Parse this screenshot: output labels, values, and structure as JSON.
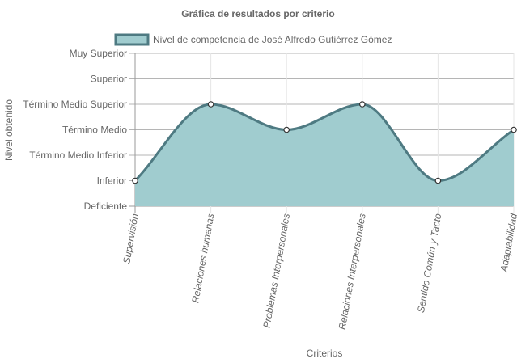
{
  "chart_data": {
    "type": "area",
    "title": "Gráfica de resultados por criterio",
    "xlabel": "Criterios",
    "ylabel": "Nivel obtenido",
    "y_levels": [
      "Deficiente",
      "Inferior",
      "Término Medio Inferior",
      "Término Medio",
      "Término Medio Superior",
      "Superior",
      "Muy Superior"
    ],
    "categories": [
      "Supervisión",
      "Relaciones humanas",
      "Problemas Interpersonales",
      "Relaciones Interpersonales",
      "Sentido Común y Tacto",
      "Adaptabilidad"
    ],
    "series": [
      {
        "name": "Nivel de competencia de José Alfredo Gutiérrez Gómez",
        "values": [
          1,
          4,
          3,
          4,
          1,
          3
        ]
      }
    ],
    "ylim": [
      0,
      6
    ],
    "legend_position": "top",
    "grid": true,
    "colors": {
      "fill": "#a0cccf",
      "line": "#4e7a82",
      "point_fill": "#ffffff",
      "grid": "#e5e5e5",
      "grid_dark": "#9a9a9a",
      "text": "#666666"
    }
  }
}
